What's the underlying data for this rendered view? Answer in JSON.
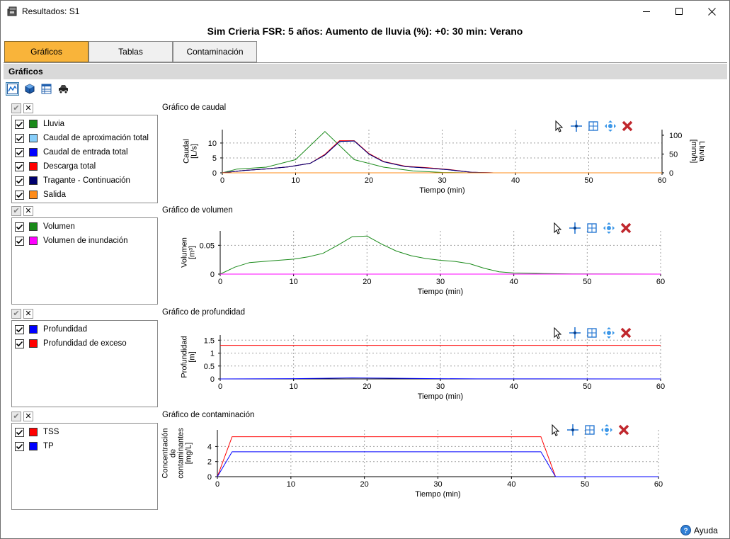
{
  "window": {
    "title": "Resultados: S1",
    "minimize_icon": "minimize-icon",
    "maximize_icon": "maximize-icon",
    "close_icon": "close-icon"
  },
  "heading": "Sim Crieria FSR: 5 años: Aumento de lluvia (%): +0: 30 min: Verano",
  "tabs": [
    {
      "label": "Gráficos",
      "active": true
    },
    {
      "label": "Tablas",
      "active": false
    },
    {
      "label": "Contaminación",
      "active": false
    }
  ],
  "section_title": "Gráficos",
  "toolbar": [
    {
      "icon": "line-chart-icon",
      "pressed": true
    },
    {
      "icon": "cube-icon",
      "pressed": false
    },
    {
      "icon": "table-icon",
      "pressed": false
    },
    {
      "icon": "car-icon",
      "pressed": false
    }
  ],
  "panel_buttons": {
    "check_all": "✔",
    "uncheck_all": "✕"
  },
  "chart_tools": [
    "cursor-icon",
    "crosshair-icon",
    "zoom-box-icon",
    "pan-icon",
    "delete-icon"
  ],
  "panels": [
    {
      "title": "Gráfico de caudal",
      "legend": [
        {
          "label": "Lluvia",
          "color": "#1a8a1a",
          "checked": true
        },
        {
          "label": "Caudal de aproximación total",
          "color": "#87cefa",
          "checked": true
        },
        {
          "label": "Caudal de entrada total",
          "color": "#0000ff",
          "checked": true
        },
        {
          "label": "Descarga total",
          "color": "#ff0000",
          "checked": true
        },
        {
          "label": "Tragante - Continuación",
          "color": "#00006e",
          "checked": true
        },
        {
          "label": "Salida",
          "color": "#ff8c1a",
          "checked": true
        }
      ]
    },
    {
      "title": "Gráfico de volumen",
      "legend": [
        {
          "label": "Volumen",
          "color": "#1a8a1a",
          "checked": true
        },
        {
          "label": "Volumen de inundación",
          "color": "#ff00ff",
          "checked": true
        }
      ]
    },
    {
      "title": "Gráfico de profundidad",
      "legend": [
        {
          "label": "Profundidad",
          "color": "#0000ff",
          "checked": true
        },
        {
          "label": "Profundidad de exceso",
          "color": "#ff0000",
          "checked": true
        }
      ]
    },
    {
      "title": "Gráfico de contaminación",
      "legend": [
        {
          "label": "TSS",
          "color": "#ff0000",
          "checked": true
        },
        {
          "label": "TP",
          "color": "#0000ff",
          "checked": true
        }
      ]
    }
  ],
  "chart_data": [
    {
      "type": "line",
      "title": "Gráfico de caudal",
      "xlabel": "Tiempo (min)",
      "ylabel_lines": [
        "Caudal",
        "[L/s]"
      ],
      "y2label_lines": [
        "Lluvia",
        "[mm/h]"
      ],
      "xlim": [
        0,
        60
      ],
      "ylim": [
        0,
        14.5
      ],
      "y2lim": [
        0,
        115
      ],
      "xticks": [
        0,
        10,
        20,
        30,
        40,
        50,
        60
      ],
      "yticks": [
        0,
        5,
        10
      ],
      "y2ticks": [
        0,
        50,
        100
      ],
      "grid": true,
      "series": [
        {
          "name": "Lluvia",
          "color": "#1a8a1a",
          "axis": "y2",
          "x": [
            0,
            2,
            6,
            10,
            14,
            18,
            22,
            26,
            30,
            34,
            38,
            60
          ],
          "y": [
            0,
            10,
            15,
            35,
            110,
            35,
            15,
            5,
            1,
            0,
            0,
            0
          ]
        },
        {
          "name": "Caudal de aproximación total",
          "color": "#87cefa",
          "axis": "y",
          "x": [
            0,
            3,
            6,
            9,
            12,
            14,
            16,
            18,
            20,
            22,
            25,
            28,
            31,
            34,
            37,
            60
          ],
          "y": [
            0,
            0.8,
            1.3,
            2,
            3.2,
            6,
            10.5,
            10.7,
            6.3,
            3.7,
            2.1,
            1.6,
            1,
            0.2,
            0,
            0
          ]
        },
        {
          "name": "Caudal de entrada total",
          "color": "#0000ff",
          "axis": "y",
          "x": [
            0,
            3,
            6,
            9,
            12,
            14,
            16,
            18,
            20,
            22,
            25,
            28,
            31,
            34,
            37,
            60
          ],
          "y": [
            0,
            0.8,
            1.3,
            2,
            3.2,
            6,
            10.5,
            10.7,
            6.3,
            3.7,
            2.1,
            1.6,
            1,
            0.2,
            0,
            0
          ]
        },
        {
          "name": "Descarga total",
          "color": "#ff0000",
          "axis": "y",
          "x": [
            0,
            3,
            6,
            9,
            12,
            14,
            16,
            18,
            20,
            22,
            25,
            28,
            31,
            34,
            37,
            60
          ],
          "y": [
            0,
            0.8,
            1.3,
            2,
            3.2,
            6.2,
            10.8,
            10.8,
            6.5,
            3.8,
            2.2,
            1.7,
            1.1,
            0.2,
            0,
            0
          ]
        },
        {
          "name": "Tragante - Continuación",
          "color": "#00006e",
          "axis": "y",
          "x": [
            0,
            3,
            6,
            9,
            12,
            14,
            16,
            18,
            20,
            22,
            25,
            28,
            31,
            34,
            37,
            60
          ],
          "y": [
            0,
            0.8,
            1.3,
            2,
            3.2,
            6,
            10.5,
            10.7,
            6.3,
            3.7,
            2.1,
            1.6,
            1,
            0.2,
            0,
            0
          ]
        },
        {
          "name": "Salida",
          "color": "#ff8c1a",
          "axis": "y",
          "x": [
            0,
            60
          ],
          "y": [
            0,
            0
          ]
        }
      ]
    },
    {
      "type": "line",
      "title": "Gráfico de volumen",
      "xlabel": "Tiempo (min)",
      "ylabel_lines": [
        "Volumen",
        "[m³]"
      ],
      "xlim": [
        0,
        60
      ],
      "ylim": [
        0,
        0.075
      ],
      "xticks": [
        0,
        10,
        20,
        30,
        40,
        50,
        60
      ],
      "yticks": [
        0,
        0.05
      ],
      "grid": true,
      "series": [
        {
          "name": "Volumen",
          "color": "#1a8a1a",
          "axis": "y",
          "x": [
            0,
            2,
            4,
            7,
            10,
            12,
            14,
            16,
            18,
            20,
            22,
            24,
            26,
            28,
            30,
            32,
            34,
            36,
            38,
            40,
            44,
            48,
            60
          ],
          "y": [
            0,
            0.012,
            0.02,
            0.023,
            0.026,
            0.03,
            0.036,
            0.05,
            0.065,
            0.066,
            0.052,
            0.04,
            0.032,
            0.027,
            0.024,
            0.022,
            0.018,
            0.01,
            0.004,
            0.002,
            0.001,
            0.0003,
            0
          ]
        },
        {
          "name": "Volumen de inundación",
          "color": "#ff00ff",
          "axis": "y",
          "x": [
            0,
            60
          ],
          "y": [
            0,
            0
          ]
        }
      ]
    },
    {
      "type": "line",
      "title": "Gráfico de profundidad",
      "xlabel": "Tiempo (min)",
      "ylabel_lines": [
        "Profundidad",
        "[m]"
      ],
      "xlim": [
        0,
        60
      ],
      "ylim": [
        0,
        1.7
      ],
      "xticks": [
        0,
        10,
        20,
        30,
        40,
        50,
        60
      ],
      "yticks": [
        0,
        0.5,
        1,
        1.5
      ],
      "grid": true,
      "series": [
        {
          "name": "Profundidad",
          "color": "#0000ff",
          "axis": "y",
          "x": [
            0,
            10,
            14,
            18,
            22,
            28,
            35,
            60
          ],
          "y": [
            0,
            0.01,
            0.025,
            0.04,
            0.03,
            0.015,
            0.003,
            0
          ]
        },
        {
          "name": "Profundidad de exceso",
          "color": "#ff0000",
          "axis": "y",
          "x": [
            0,
            60
          ],
          "y": [
            1.3,
            1.3
          ]
        }
      ]
    },
    {
      "type": "line",
      "title": "Gráfico de contaminación",
      "xlabel": "Tiempo (min)",
      "ylabel_lines": [
        "Concentración",
        "de",
        "contaminantes",
        "[mg/L]"
      ],
      "xlim": [
        0,
        60
      ],
      "ylim": [
        0,
        6.2
      ],
      "xticks": [
        0,
        10,
        20,
        30,
        40,
        50,
        60
      ],
      "yticks": [
        0,
        2,
        4
      ],
      "grid": true,
      "series": [
        {
          "name": "TSS",
          "color": "#ff0000",
          "axis": "y",
          "x": [
            0,
            2,
            44,
            46,
            60
          ],
          "y": [
            0,
            5.3,
            5.3,
            0,
            0
          ]
        },
        {
          "name": "TP",
          "color": "#0000ff",
          "axis": "y",
          "x": [
            0,
            2,
            44,
            46,
            60
          ],
          "y": [
            0,
            3.3,
            3.3,
            0,
            0
          ]
        }
      ]
    }
  ],
  "help_label": "Ayuda",
  "help_icon": "help-icon"
}
